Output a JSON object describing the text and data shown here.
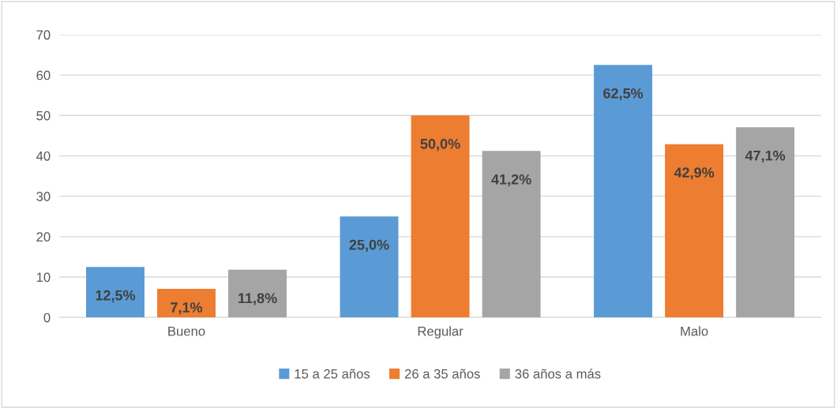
{
  "chart_data": {
    "type": "bar",
    "categories": [
      "Bueno",
      "Regular",
      "Malo"
    ],
    "series": [
      {
        "name": "15 a 25 años",
        "color": "#5b9bd5",
        "values": [
          12.5,
          25.0,
          62.5
        ],
        "value_labels": [
          "12,5%",
          "25,0%",
          "62,5%"
        ]
      },
      {
        "name": "26 a 35 años",
        "color": "#ed7d31",
        "values": [
          7.1,
          50.0,
          42.9
        ],
        "value_labels": [
          "7,1%",
          "50,0%",
          "42,9%"
        ]
      },
      {
        "name": "36 años a más",
        "color": "#a5a5a5",
        "values": [
          11.8,
          41.2,
          47.1
        ],
        "value_labels": [
          "11,8%",
          "41,2%",
          "47,1%"
        ]
      }
    ],
    "ylim": [
      0,
      70
    ],
    "yticks": [
      0,
      10,
      20,
      30,
      40,
      50,
      60,
      70
    ],
    "grid": "y",
    "legend": "bottom"
  }
}
